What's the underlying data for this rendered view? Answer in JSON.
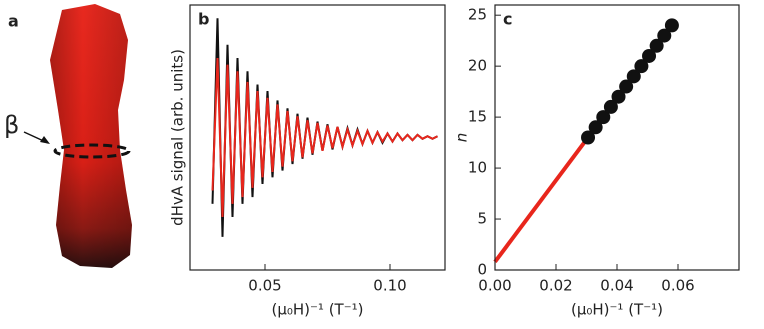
{
  "figure": {
    "panel_label": "a",
    "annotation": "β"
  },
  "chart_data": [
    {
      "type": "line",
      "panel_label": "b",
      "ylabel": "dHvA signal (arb. units)",
      "xlabel": "(μ₀H)⁻¹ (T⁻¹)",
      "x": [
        0.029,
        0.031,
        0.033,
        0.035,
        0.037,
        0.039,
        0.041,
        0.043,
        0.045,
        0.047,
        0.049,
        0.051,
        0.053,
        0.055,
        0.057,
        0.059,
        0.061,
        0.063,
        0.065,
        0.067,
        0.069,
        0.071,
        0.073,
        0.075,
        0.077,
        0.079,
        0.081,
        0.083,
        0.085,
        0.087,
        0.089,
        0.091,
        0.093,
        0.095,
        0.097,
        0.099,
        0.101,
        0.103,
        0.105,
        0.107,
        0.109,
        0.111,
        0.113,
        0.115,
        0.117,
        0.119
      ],
      "series": [
        {
          "color": "#111111",
          "values": [
            -0.5,
            0.9,
            -0.75,
            0.7,
            -0.6,
            0.6,
            -0.5,
            0.5,
            -0.45,
            0.4,
            -0.35,
            0.35,
            -0.3,
            0.28,
            -0.25,
            0.22,
            -0.2,
            0.18,
            -0.16,
            0.15,
            -0.13,
            0.12,
            -0.1,
            0.1,
            -0.09,
            0.08,
            -0.07,
            0.07,
            -0.06,
            0.06,
            -0.05,
            0.05,
            -0.04,
            0.04,
            -0.04,
            0.03,
            -0.03,
            0.03,
            -0.02,
            0.02,
            -0.02,
            0.02,
            -0.01,
            0.01,
            -0.01,
            0.01
          ]
        },
        {
          "color": "#e8261c",
          "values": [
            -0.4,
            0.6,
            -0.6,
            0.55,
            -0.5,
            0.5,
            -0.45,
            0.42,
            -0.38,
            0.35,
            -0.3,
            0.3,
            -0.26,
            0.25,
            -0.22,
            0.2,
            -0.18,
            0.16,
            -0.15,
            0.13,
            -0.12,
            0.11,
            -0.1,
            0.09,
            -0.08,
            0.08,
            -0.07,
            0.06,
            -0.06,
            0.05,
            -0.05,
            0.05,
            -0.04,
            0.04,
            -0.03,
            0.03,
            -0.03,
            0.03,
            -0.02,
            0.02,
            -0.02,
            0.02,
            -0.01,
            0.01,
            -0.01,
            0.01
          ]
        }
      ],
      "xlim": [
        0.02,
        0.122
      ],
      "xticks": [
        0.05,
        {
          "value": 0.1,
          "label": "0.10"
        }
      ],
      "ylim": [
        -1,
        1
      ]
    },
    {
      "type": "scatter",
      "panel_label": "c",
      "ylabel": "n",
      "xlabel": "(μ₀H)⁻¹ (T⁻¹)",
      "points": {
        "color": "#111111",
        "x": [
          0.0305,
          0.033,
          0.0355,
          0.038,
          0.0405,
          0.043,
          0.0455,
          0.048,
          0.0505,
          0.053,
          0.0555,
          0.058
        ],
        "y": [
          13,
          14,
          15,
          16,
          17,
          18,
          19,
          20,
          21,
          22,
          23,
          24
        ]
      },
      "fit": {
        "color": "#e8261c",
        "x": [
          0,
          0.058
        ],
        "y": [
          0.8,
          24
        ]
      },
      "xlim": [
        0,
        0.08
      ],
      "xticks": [
        {
          "value": 0,
          "label": "0.00"
        },
        {
          "value": 0.02,
          "label": "0.02"
        },
        {
          "value": 0.04,
          "label": "0.04"
        },
        {
          "value": 0.06,
          "label": "0.06"
        }
      ],
      "ylim": [
        0,
        26
      ],
      "yticks": [
        0,
        5,
        10,
        15,
        20,
        25
      ]
    }
  ]
}
